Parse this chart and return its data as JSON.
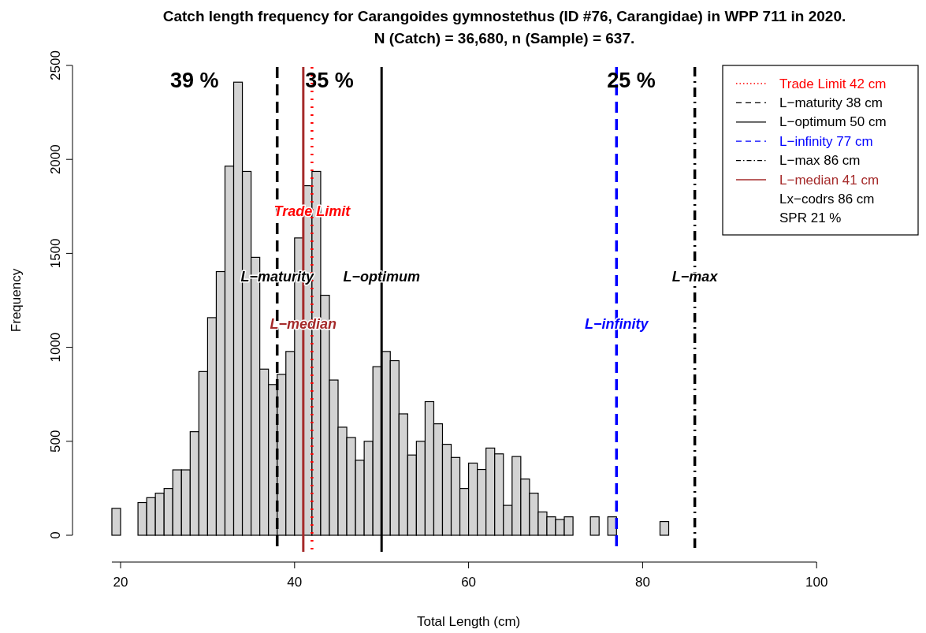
{
  "chart_data": {
    "type": "histogram",
    "title": "Catch length frequency for Carangoides gymnostethus (ID #76, Carangidae) in WPP 711 in 2020.",
    "subtitle": "N (Catch) = 36,680, n (Sample) = 637.",
    "xlabel": "Total Length (cm)",
    "ylabel": "Frequency",
    "color": "#d3d3d3",
    "bins": [
      19,
      20,
      21,
      22,
      23,
      24,
      25,
      26,
      27,
      28,
      29,
      30,
      31,
      32,
      33,
      34,
      35,
      36,
      37,
      38,
      39,
      40,
      41,
      42,
      43,
      44,
      45,
      46,
      47,
      48,
      49,
      50,
      51,
      52,
      53,
      54,
      55,
      56,
      57,
      58,
      59,
      60,
      61,
      62,
      63,
      64,
      65,
      66,
      67,
      68,
      69,
      70,
      71,
      72,
      73,
      74,
      75,
      76,
      77,
      78,
      79,
      80,
      81,
      82,
      83,
      84,
      85,
      86,
      87,
      88,
      89,
      90,
      91,
      92,
      93
    ],
    "values": [
      143,
      0,
      0,
      174,
      200,
      224,
      249,
      348,
      348,
      551,
      871,
      1158,
      1403,
      1964,
      2411,
      1936,
      1479,
      884,
      802,
      856,
      978,
      1582,
      1860,
      1936,
      1277,
      826,
      575,
      520,
      399,
      500,
      897,
      978,
      929,
      646,
      427,
      500,
      711,
      593,
      484,
      414,
      249,
      384,
      350,
      464,
      433,
      159,
      419,
      299,
      224,
      124,
      98,
      84,
      98,
      0,
      0,
      98,
      0,
      98,
      0,
      0,
      0,
      0,
      0,
      73,
      0,
      0,
      0,
      0,
      0,
      0,
      0,
      0,
      0,
      0
    ],
    "xlim": [
      19,
      100
    ],
    "xticks": [
      20,
      40,
      60,
      80,
      100
    ],
    "ylim": [
      0,
      2500
    ],
    "yticks": [
      0,
      500,
      1000,
      1500,
      2000,
      2500
    ],
    "grid": false,
    "legend": "top right",
    "ref_lines": [
      {
        "axis": "x",
        "value": 42,
        "label": "Trade Limit",
        "color": "#ff0000",
        "line_style": "dotted"
      },
      {
        "axis": "x",
        "value": 38,
        "label": "L−maturity",
        "color": "#000000",
        "line_style": "dashed"
      },
      {
        "axis": "x",
        "value": 50,
        "label": "L−optimum",
        "color": "#000000",
        "line_style": "solid"
      },
      {
        "axis": "x",
        "value": 77,
        "label": "L−infinity",
        "color": "#0000ff",
        "line_style": "dashed"
      },
      {
        "axis": "x",
        "value": 86,
        "label": "L−max",
        "color": "#000000",
        "line_style": "dashdot"
      },
      {
        "axis": "x",
        "value": 41,
        "label": "L−median",
        "color": "#a52a2a",
        "line_style": "solid"
      }
    ],
    "annotations": [
      "39 %",
      "35 %",
      "25 %",
      "Trade Limit 42 cm",
      "L−maturity 38 cm",
      "L−optimum 50 cm",
      "L−infinity 77 cm",
      "L−max 86 cm",
      "L−median 41 cm",
      "Lx−codrs 86 cm",
      "SPR 21 %"
    ]
  }
}
